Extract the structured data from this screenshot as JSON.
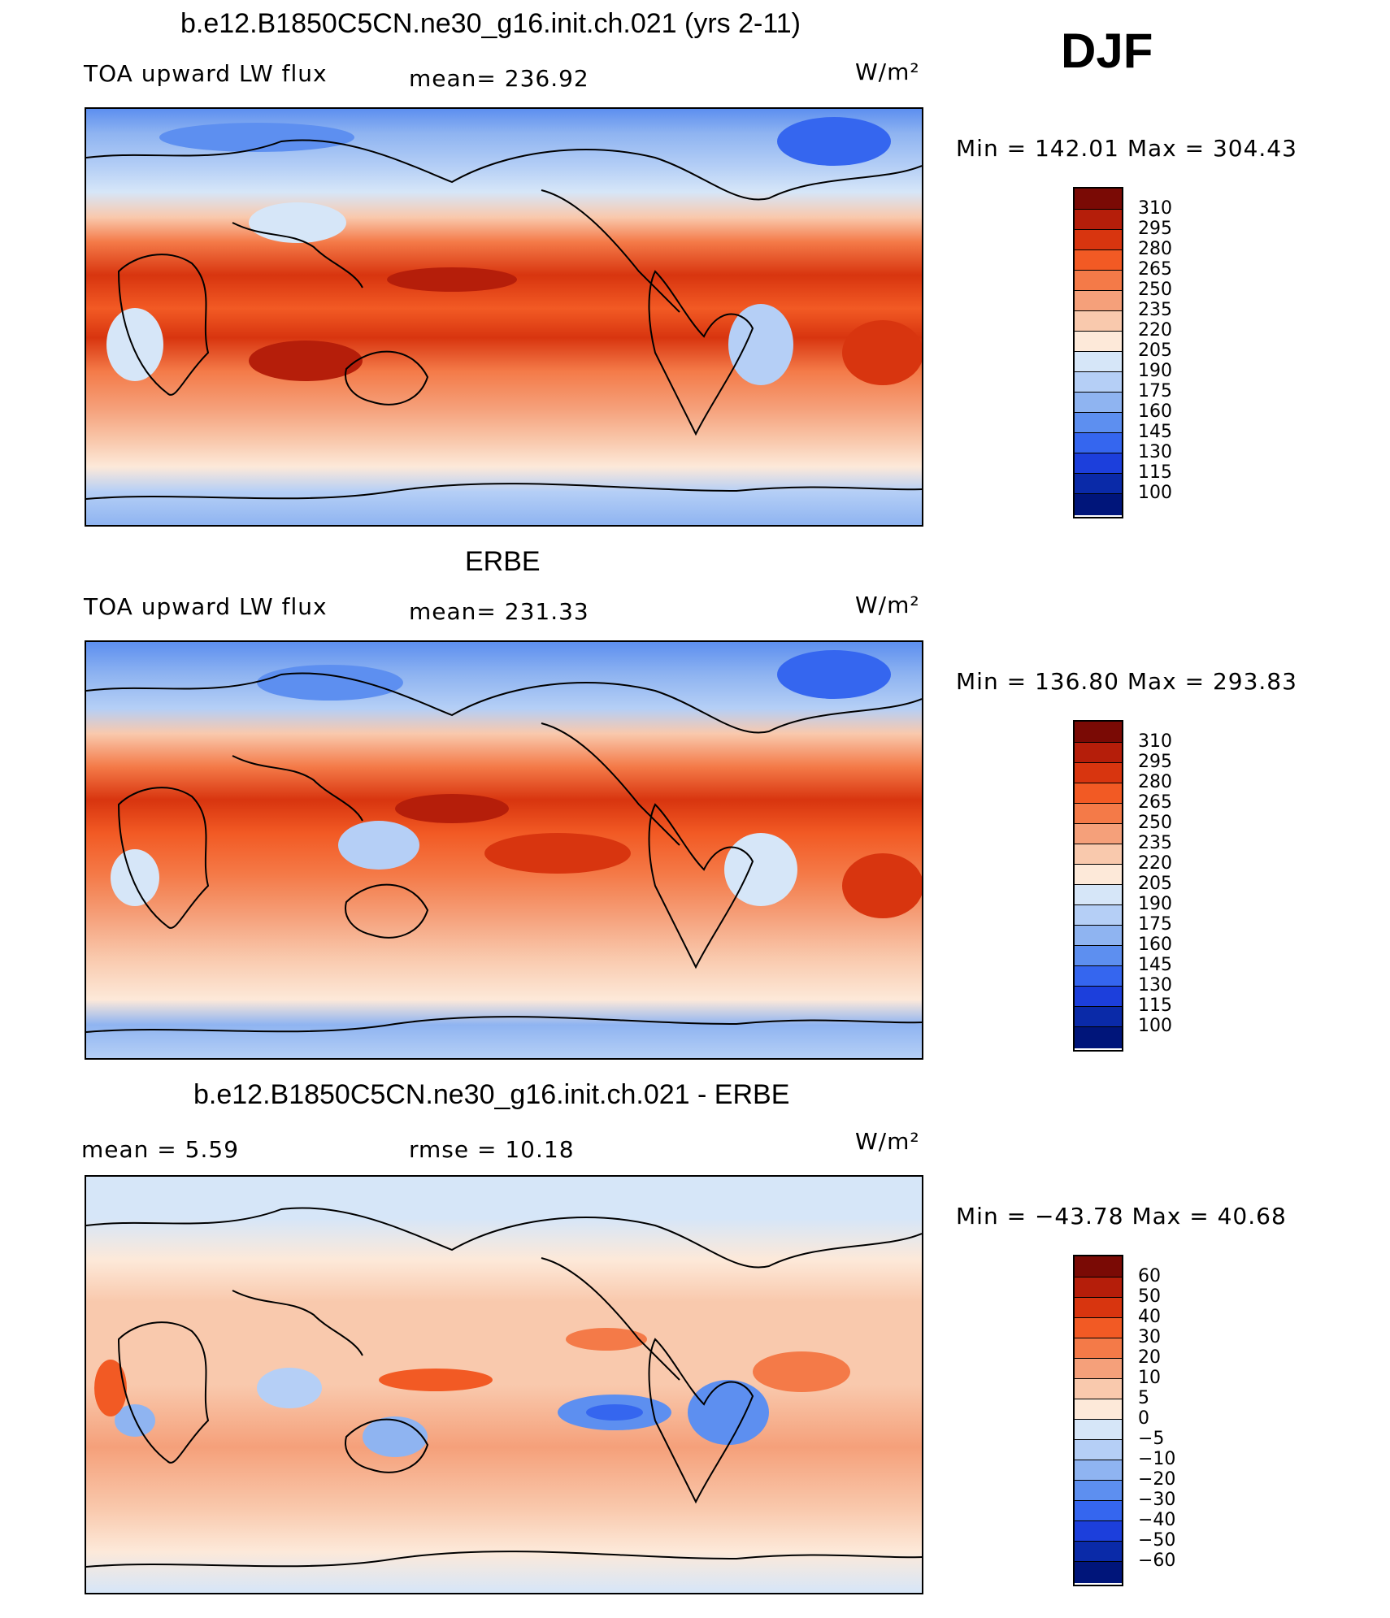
{
  "season": "DJF",
  "panels": [
    {
      "title": "b.e12.B1850C5CN.ne30_g16.init.ch.021 (yrs 2-11)",
      "left_label": "TOA upward LW flux",
      "stat1": "mean=  236.92",
      "stat2": "",
      "units": "W/m²",
      "minmax": "Min  =  142.01  Max  =  304.43",
      "colorbar": [
        "310",
        "295",
        "280",
        "265",
        "250",
        "235",
        "220",
        "205",
        "190",
        "175",
        "160",
        "145",
        "130",
        "115",
        "100"
      ],
      "map_icon": "world-map-contour-icon"
    },
    {
      "title": "ERBE",
      "left_label": "TOA upward LW flux",
      "stat1": "mean=  231.33",
      "stat2": "",
      "units": "W/m²",
      "minmax": "Min  =  136.80  Max  =  293.83",
      "colorbar": [
        "310",
        "295",
        "280",
        "265",
        "250",
        "235",
        "220",
        "205",
        "190",
        "175",
        "160",
        "145",
        "130",
        "115",
        "100"
      ],
      "map_icon": "world-map-contour-icon"
    },
    {
      "title": "b.e12.B1850C5CN.ne30_g16.init.ch.021 - ERBE",
      "left_label": "mean  =      5.59",
      "stat1": "rmse  =    10.18",
      "stat2": "",
      "units": "W/m²",
      "minmax": "Min  =  −43.78  Max  =    40.68",
      "colorbar": [
        "60",
        "50",
        "40",
        "30",
        "20",
        "10",
        "5",
        "0",
        "−5",
        "−10",
        "−20",
        "−30",
        "−40",
        "−50",
        "−60"
      ],
      "map_icon": "world-map-difference-icon"
    }
  ],
  "colors": {
    "scale": [
      "#7a0a05",
      "#b51e0a",
      "#d8350f",
      "#f25a24",
      "#f47a48",
      "#f5a07a",
      "#f9c9ad",
      "#fde9d9",
      "#d6e6f8",
      "#b5cff6",
      "#8fb4f1",
      "#5d8ff0",
      "#3566ef",
      "#1c3fdc",
      "#0a2aa8",
      "#00157a"
    ]
  }
}
